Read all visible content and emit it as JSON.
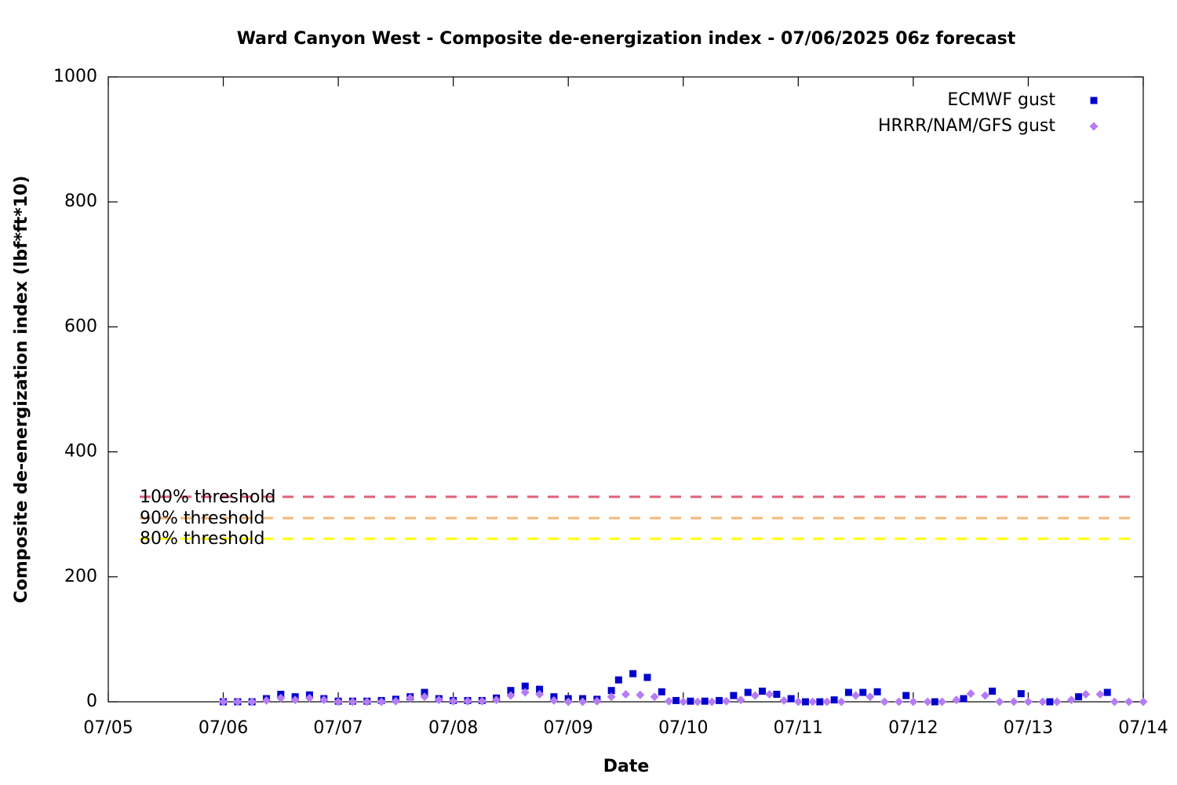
{
  "chart_data": {
    "type": "scatter",
    "title": "Ward Canyon West - Composite de-energization index - 07/06/2025 06z forecast",
    "x_label": "Date",
    "y_label": "Composite de-energization index (lbf*ft*10)",
    "xlim": [
      5,
      14
    ],
    "xticks": [
      {
        "value": 5,
        "label": "07/05"
      },
      {
        "value": 6,
        "label": "07/06"
      },
      {
        "value": 7,
        "label": "07/07"
      },
      {
        "value": 8,
        "label": "07/08"
      },
      {
        "value": 9,
        "label": "07/09"
      },
      {
        "value": 10,
        "label": "07/10"
      },
      {
        "value": 11,
        "label": "07/11"
      },
      {
        "value": 12,
        "label": "07/12"
      },
      {
        "value": 13,
        "label": "07/13"
      },
      {
        "value": 14,
        "label": "07/14"
      }
    ],
    "ylim": [
      0,
      1000
    ],
    "yticks": [
      0,
      200,
      400,
      600,
      800,
      1000
    ],
    "legend": "top-right",
    "series": [
      {
        "name": "ECMWF gust",
        "color": "#0000cc",
        "marker": "square",
        "x": [
          6.0,
          6.125,
          6.25,
          6.375,
          6.5,
          6.625,
          6.75,
          6.875,
          7.0,
          7.125,
          7.25,
          7.375,
          7.5,
          7.625,
          7.75,
          7.875,
          8.0,
          8.125,
          8.25,
          8.375,
          8.5,
          8.625,
          8.75,
          8.875,
          9.0,
          9.125,
          9.25,
          9.375,
          9.4375,
          9.5625,
          9.6875,
          9.8125,
          9.9375,
          10.0625,
          10.1875,
          10.3125,
          10.4375,
          10.5625,
          10.6875,
          10.8125,
          10.9375,
          11.0625,
          11.1875,
          11.3125,
          11.4375,
          11.5625,
          11.6875,
          11.9375,
          12.1875,
          12.4375,
          12.6875,
          12.9375,
          13.1875,
          13.4375,
          13.6875
        ],
        "values": [
          0,
          0,
          0,
          5,
          12,
          8,
          11,
          5,
          1,
          1,
          1,
          2,
          4,
          8,
          15,
          5,
          2,
          2,
          2,
          6,
          18,
          25,
          20,
          8,
          5,
          5,
          4,
          18,
          35,
          45,
          39,
          16,
          2,
          1,
          1,
          2,
          10,
          15,
          17,
          12,
          5,
          0,
          0,
          3,
          15,
          15,
          16,
          10,
          0,
          5,
          17,
          13,
          0,
          8,
          15
        ]
      },
      {
        "name": "HRRR/NAM/GFS gust",
        "color": "#b57cf5",
        "marker": "diamond",
        "x": [
          6.0,
          6.125,
          6.25,
          6.375,
          6.5,
          6.625,
          6.75,
          6.875,
          7.0,
          7.125,
          7.25,
          7.375,
          7.5,
          7.625,
          7.75,
          7.875,
          8.0,
          8.125,
          8.25,
          8.375,
          8.5,
          8.625,
          8.75,
          8.875,
          9.0,
          9.125,
          9.25,
          9.375,
          9.5,
          9.625,
          9.75,
          9.875,
          10.0,
          10.125,
          10.25,
          10.375,
          10.5,
          10.625,
          10.75,
          10.875,
          11.0,
          11.125,
          11.25,
          11.375,
          11.5,
          11.625,
          11.75,
          11.875,
          12.0,
          12.125,
          12.25,
          12.375,
          12.5,
          12.625,
          12.75,
          12.875,
          13.0,
          13.125,
          13.25,
          13.375,
          13.5,
          13.625,
          13.75,
          13.875,
          14.0
        ],
        "values": [
          0,
          0,
          0,
          2,
          6,
          3,
          6,
          3,
          0,
          0,
          0,
          0,
          1,
          6,
          8,
          3,
          1,
          1,
          1,
          3,
          10,
          15,
          12,
          2,
          0,
          0,
          1,
          8,
          12,
          11,
          8,
          1,
          0,
          0,
          0,
          1,
          3,
          10,
          12,
          2,
          0,
          0,
          0,
          0,
          10,
          8,
          0,
          0,
          0,
          0,
          0,
          3,
          13,
          10,
          0,
          0,
          0,
          0,
          0,
          3,
          12,
          12,
          0,
          0,
          0
        ]
      }
    ],
    "thresholds": [
      {
        "label": "100% threshold",
        "value": 328,
        "color": "#e0607a"
      },
      {
        "label": "90% threshold",
        "value": 294,
        "color": "#f5b87a"
      },
      {
        "label": "80% threshold",
        "value": 261,
        "color": "#ffff00"
      }
    ]
  }
}
